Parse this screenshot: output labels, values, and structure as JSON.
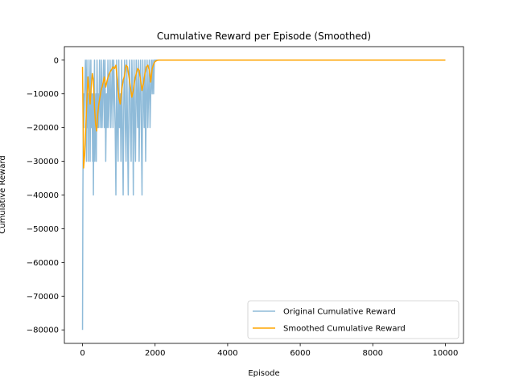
{
  "chart_data": {
    "type": "line",
    "title": "Cumulative Reward per Episode (Smoothed)",
    "xlabel": "Episode",
    "ylabel": "Cumulative Reward",
    "xlim": [
      -500,
      10500
    ],
    "ylim": [
      -84000,
      4000
    ],
    "x_ticks": [
      0,
      2000,
      4000,
      6000,
      8000,
      10000
    ],
    "x_tick_labels": [
      "0",
      "2000",
      "4000",
      "6000",
      "8000",
      "10000"
    ],
    "y_ticks": [
      0,
      -10000,
      -20000,
      -30000,
      -40000,
      -50000,
      -60000,
      -70000,
      -80000
    ],
    "y_tick_labels": [
      "0",
      "−10000",
      "−20000",
      "−30000",
      "−40000",
      "−50000",
      "−60000",
      "−70000",
      "−80000"
    ],
    "grid": false,
    "legend": {
      "placement": "lower-right",
      "entries": [
        "Original Cumulative Reward",
        "Smoothed Cumulative Reward"
      ]
    },
    "series": [
      {
        "name": "Original Cumulative Reward",
        "color": "#1f77b4",
        "alpha": 0.5,
        "x": [
          0,
          10,
          20,
          30,
          40,
          60,
          80,
          100,
          110,
          120,
          130,
          150,
          160,
          180,
          200,
          210,
          230,
          240,
          260,
          280,
          290,
          300,
          310,
          330,
          340,
          350,
          370,
          380,
          400,
          420,
          430,
          450,
          470,
          480,
          500,
          520,
          540,
          560,
          580,
          600,
          620,
          640,
          660,
          680,
          700,
          720,
          740,
          760,
          780,
          800,
          820,
          840,
          860,
          880,
          900,
          920,
          940,
          960,
          980,
          1000,
          1020,
          1040,
          1060,
          1080,
          1100,
          1120,
          1140,
          1160,
          1180,
          1200,
          1220,
          1240,
          1260,
          1280,
          1300,
          1320,
          1340,
          1360,
          1380,
          1400,
          1420,
          1440,
          1460,
          1480,
          1500,
          1520,
          1540,
          1560,
          1580,
          1600,
          1620,
          1640,
          1660,
          1680,
          1700,
          1720,
          1740,
          1760,
          1780,
          1800,
          1820,
          1840,
          1860,
          1880,
          1900,
          1920,
          1940,
          1960,
          1980,
          2000,
          2100,
          10000
        ],
        "y": [
          -80000,
          -40000,
          -20000,
          -10000,
          -20000,
          -10000,
          0,
          -10000,
          -30000,
          0,
          -20000,
          -10000,
          -30000,
          0,
          -10000,
          -30000,
          0,
          -20000,
          -10000,
          -30000,
          -10000,
          -40000,
          -20000,
          0,
          -30000,
          -20000,
          -10000,
          -30000,
          0,
          -20000,
          -10000,
          -20000,
          0,
          -10000,
          -20000,
          0,
          -20000,
          -10000,
          0,
          -20000,
          0,
          -30000,
          -10000,
          -20000,
          0,
          -20000,
          -10000,
          0,
          -20000,
          -10000,
          0,
          -20000,
          0,
          -10000,
          -20000,
          -40000,
          0,
          -20000,
          -30000,
          0,
          -20000,
          -10000,
          -30000,
          0,
          -20000,
          -40000,
          -10000,
          0,
          -20000,
          -30000,
          0,
          -20000,
          -40000,
          -10000,
          0,
          -20000,
          -30000,
          0,
          -10000,
          -40000,
          0,
          -20000,
          -30000,
          0,
          -10000,
          -20000,
          0,
          -30000,
          -10000,
          0,
          -20000,
          -40000,
          0,
          -10000,
          -20000,
          0,
          -30000,
          -10000,
          0,
          -20000,
          -10000,
          0,
          -20000,
          -10000,
          0,
          -10000,
          0,
          -10000,
          0,
          0,
          0,
          0
        ]
      },
      {
        "name": "Smoothed Cumulative Reward",
        "color": "#ffa500",
        "alpha": 1,
        "x": [
          0,
          30,
          60,
          90,
          120,
          150,
          180,
          210,
          240,
          270,
          300,
          330,
          360,
          390,
          420,
          450,
          480,
          510,
          540,
          570,
          600,
          640,
          680,
          720,
          760,
          800,
          840,
          880,
          920,
          960,
          1000,
          1040,
          1080,
          1120,
          1160,
          1200,
          1240,
          1280,
          1320,
          1360,
          1400,
          1440,
          1480,
          1520,
          1560,
          1600,
          1640,
          1680,
          1720,
          1760,
          1800,
          1840,
          1880,
          1920,
          1960,
          2000,
          2050,
          2100,
          2200,
          10000
        ],
        "y": [
          -2000,
          -32000,
          -28000,
          -20000,
          -12000,
          -5000,
          -9000,
          -13000,
          -8000,
          -4000,
          -6000,
          -14000,
          -19000,
          -21000,
          -16000,
          -13000,
          -11000,
          -9000,
          -8000,
          -6500,
          -5000,
          -8000,
          -6000,
          -4500,
          -3500,
          -2800,
          -2000,
          -2500,
          -1500,
          -6000,
          -11000,
          -13000,
          -9000,
          -6000,
          -4500,
          -1500,
          -2000,
          -5000,
          -8000,
          -11000,
          -9000,
          -6000,
          -4000,
          -2500,
          -3000,
          -6000,
          -9000,
          -7000,
          -4000,
          -2000,
          -1500,
          -3000,
          -6500,
          -2500,
          -1200,
          -400,
          -100,
          0,
          0,
          0
        ]
      }
    ]
  }
}
